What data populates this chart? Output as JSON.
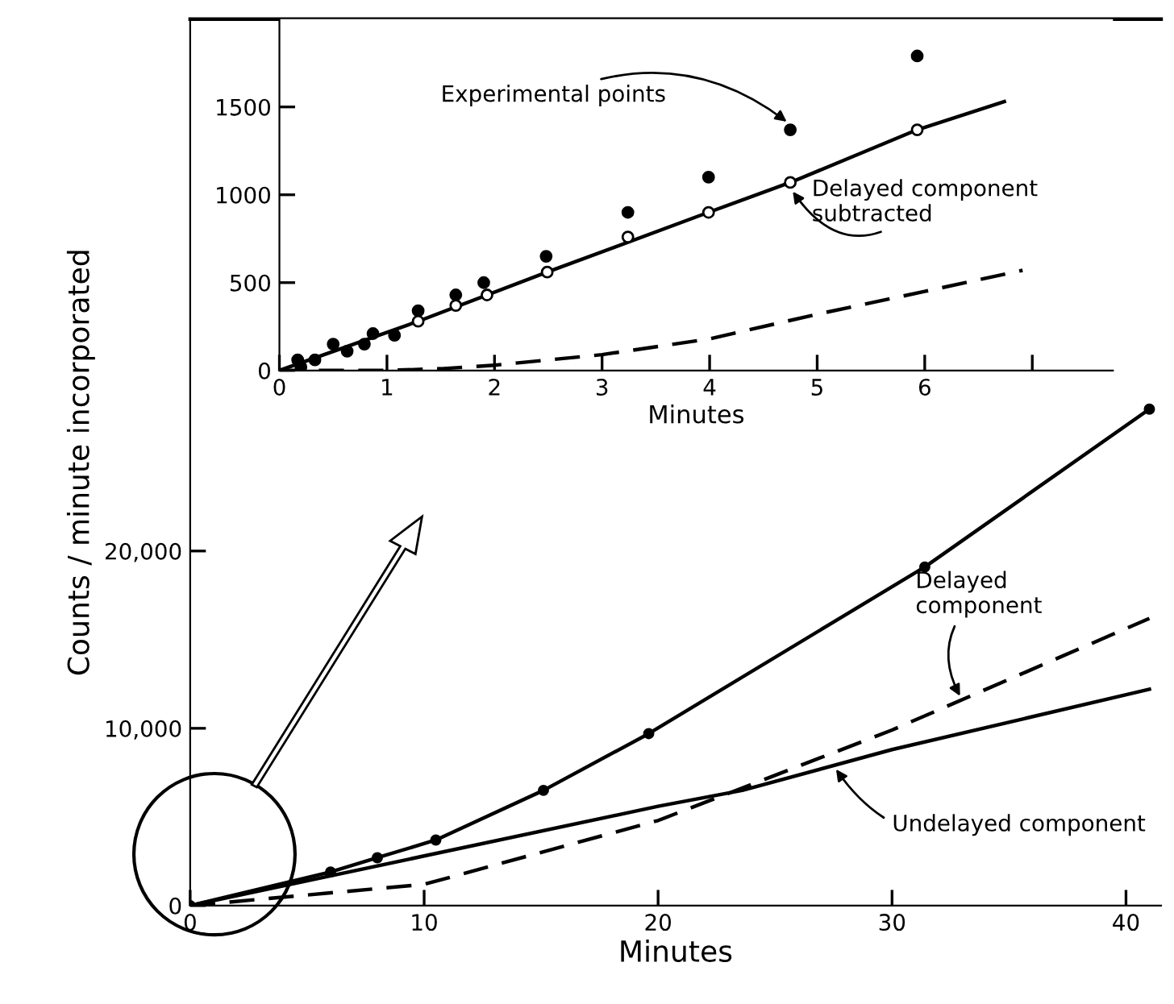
{
  "chart_data": [
    {
      "type": "line",
      "xlabel": "Minutes",
      "ylabel": "Counts / minute incorporated",
      "xlim": [
        0,
        41.5
      ],
      "ylim": [
        0,
        50000
      ],
      "xticks": [
        0,
        10,
        20,
        30,
        40
      ],
      "yticks": [
        0,
        {
          "value": 10000,
          "label": "10,000"
        },
        {
          "value": 20000,
          "label": "20,000"
        }
      ],
      "grid": false,
      "legend": false,
      "series": [
        {
          "color": "#000000",
          "marker": "circle",
          "line_style": "solid",
          "x": [
            0,
            6,
            8,
            10.5,
            15.1,
            19.6,
            31.4,
            41
          ],
          "values": [
            0,
            1900,
            2700,
            3700,
            6500,
            9700,
            19100,
            28000
          ]
        },
        {
          "color": "#000000",
          "marker": "none",
          "line_style": "dashed",
          "x": [
            0,
            10,
            20,
            30,
            41
          ],
          "values": [
            0,
            1200,
            4800,
            9900,
            16200
          ]
        },
        {
          "color": "#000000",
          "marker": "none",
          "line_style": "solid",
          "x": [
            0,
            10,
            20,
            23.6,
            30,
            41
          ],
          "values": [
            0,
            2800,
            5600,
            6500,
            8800,
            12200
          ]
        }
      ],
      "annotations": [
        {
          "text": "Delayed\ncomponent",
          "x": 33,
          "y": 11600
        },
        {
          "text": "Undelayed component",
          "x": 27.5,
          "y": 7900
        }
      ]
    },
    {
      "type": "scatter",
      "xlabel": "Minutes",
      "xlim": [
        0,
        7.75
      ],
      "ylim": [
        0,
        2000
      ],
      "xticks": [
        0,
        1,
        2,
        3,
        4,
        5,
        6,
        {
          "value": 7,
          "label": null
        }
      ],
      "yticks": [
        0,
        500,
        1000,
        1500
      ],
      "grid": false,
      "legend": false,
      "series": [
        {
          "type": "scatter",
          "color": "#000000",
          "marker": "circle",
          "x": [
            0.17,
            0.2,
            0.33,
            0.5,
            0.63,
            0.79,
            0.87,
            1.07,
            1.29,
            1.64,
            1.9,
            2.48,
            3.24,
            3.99,
            4.75,
            5.93
          ],
          "values": [
            60,
            20,
            60,
            150,
            110,
            150,
            210,
            200,
            340,
            430,
            500,
            650,
            900,
            1100,
            1370,
            1790
          ]
        },
        {
          "type": "scatter",
          "color": "#ffffff",
          "marker": "circle",
          "x": [
            1.29,
            1.64,
            1.93,
            2.49,
            3.24,
            3.99,
            4.75,
            5.93
          ],
          "values": [
            280,
            370,
            430,
            560,
            760,
            900,
            1070,
            1370
          ]
        },
        {
          "type": "line",
          "color": "#000000",
          "marker": "none",
          "line_style": "solid",
          "x": [
            0,
            1.29,
            2.49,
            3.99,
            4.75,
            5.93,
            6.74
          ],
          "values": [
            0,
            280,
            560,
            900,
            1070,
            1370,
            1530
          ]
        },
        {
          "type": "line",
          "color": "#000000",
          "marker": "none",
          "line_style": "dashed",
          "x": [
            0,
            1,
            1.5,
            2,
            3,
            4,
            5,
            6,
            6.91
          ],
          "values": [
            0,
            0,
            10,
            30,
            90,
            180,
            320,
            450,
            570
          ]
        }
      ],
      "annotations": [
        {
          "text": "Experimental points",
          "x": 4.75,
          "y": 1370
        },
        {
          "text": "Delayed component\nsubtracted",
          "x": 4.75,
          "y": 1070
        }
      ]
    }
  ]
}
